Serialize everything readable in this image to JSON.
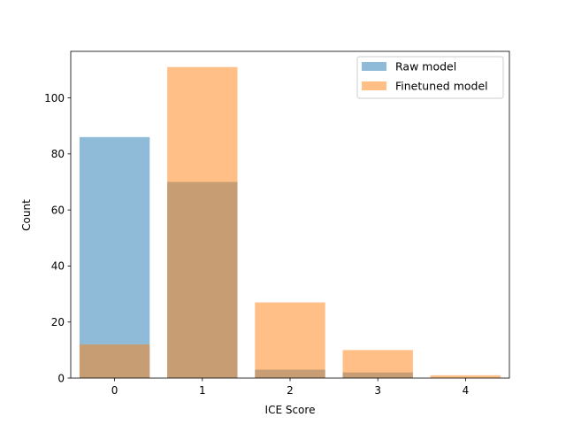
{
  "chart_data": {
    "type": "bar",
    "title": "",
    "xlabel": "ICE Score",
    "ylabel": "Count",
    "categories": [
      "0",
      "1",
      "2",
      "3",
      "4"
    ],
    "x": [
      0,
      1,
      2,
      3,
      4
    ],
    "series": [
      {
        "name": "Raw model",
        "values": [
          86,
          70,
          3,
          2,
          0
        ],
        "color": "#1f77b4",
        "alpha": 0.5
      },
      {
        "name": "Finetuned model",
        "values": [
          12,
          111,
          27,
          10,
          1
        ],
        "color": "#ff7f0e",
        "alpha": 0.5
      }
    ],
    "xlim": [
      -0.5,
      4.5
    ],
    "ylim": [
      0,
      116.6
    ],
    "yticks": [
      0,
      20,
      40,
      60,
      80,
      100
    ],
    "grid": false,
    "legend_position": "top-right"
  }
}
